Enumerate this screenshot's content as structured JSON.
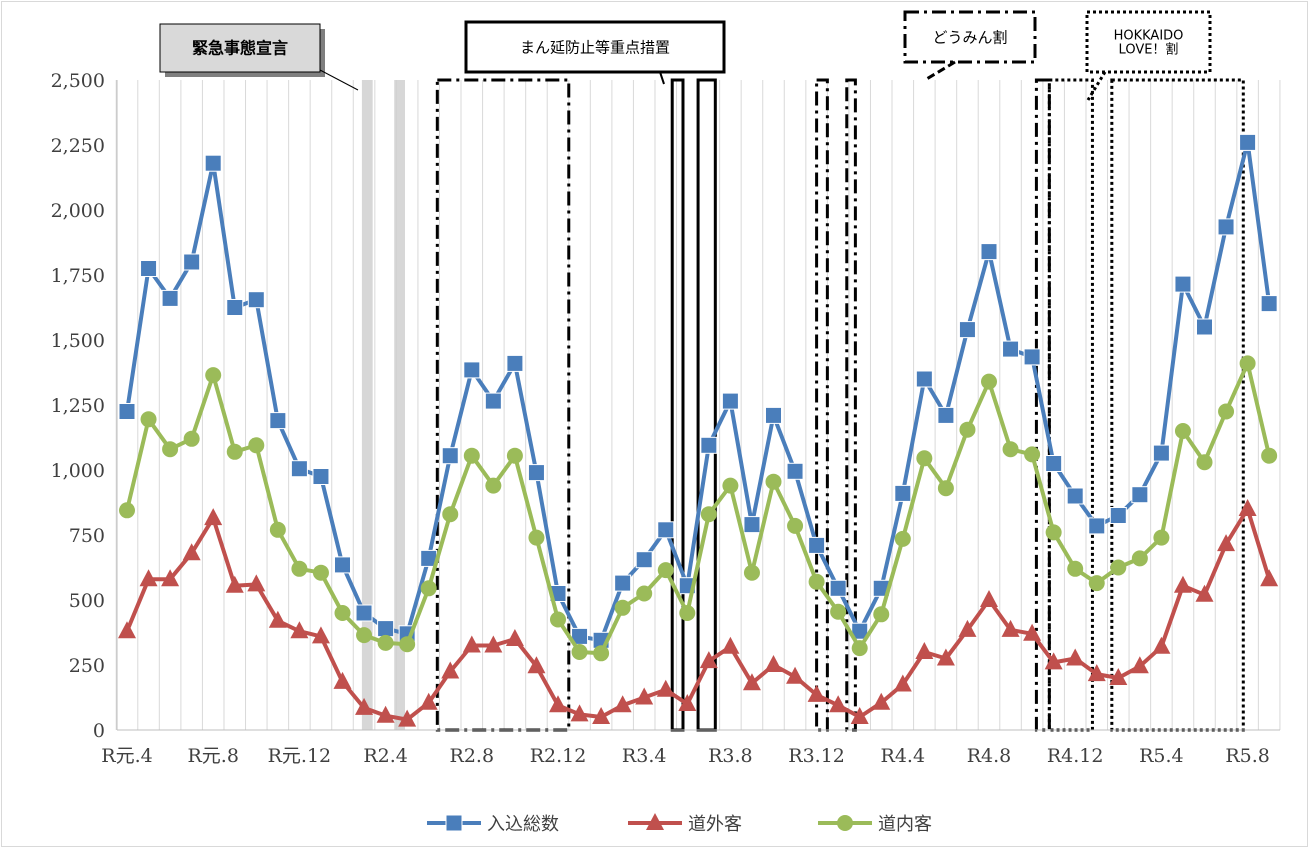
{
  "chart_data": {
    "type": "line",
    "title": "",
    "xlabel": "",
    "ylabel": "",
    "ylim": [
      0,
      2500
    ],
    "yticks": [
      "0",
      "250",
      "500",
      "750",
      "1,000",
      "1,250",
      "1,500",
      "1,750",
      "2,000",
      "2,250",
      "2,500"
    ],
    "x": [
      "R元.4",
      "R元.5",
      "R元.6",
      "R元.7",
      "R元.8",
      "R元.9",
      "R元.10",
      "R元.11",
      "R元.12",
      "R2.1",
      "R2.2",
      "R2.3",
      "R2.4",
      "R2.5",
      "R2.6",
      "R2.7",
      "R2.8",
      "R2.9",
      "R2.10",
      "R2.11",
      "R2.12",
      "R3.1",
      "R3.2",
      "R3.3",
      "R3.4",
      "R3.5",
      "R3.6",
      "R3.7",
      "R3.8",
      "R3.9",
      "R3.10",
      "R3.11",
      "R3.12",
      "R4.1",
      "R4.2",
      "R4.3",
      "R4.4",
      "R4.5",
      "R4.6",
      "R4.7",
      "R4.8",
      "R4.9",
      "R4.10",
      "R4.11",
      "R4.12",
      "R5.1",
      "R5.2",
      "R5.3",
      "R5.4",
      "R5.5",
      "R5.6",
      "R5.7",
      "R5.8",
      "R5.9"
    ],
    "x_tick_labels": [
      "R元.4",
      "R元.8",
      "R元.12",
      "R2.4",
      "R2.8",
      "R2.12",
      "R3.4",
      "R3.8",
      "R3.12",
      "R4.4",
      "R4.8",
      "R4.12",
      "R5.4",
      "R5.8"
    ],
    "series": [
      {
        "name": "入込総数",
        "color": "#4a7ebb",
        "marker": "square",
        "values": [
          1225,
          1775,
          1660,
          1800,
          2180,
          1625,
          1655,
          1190,
          1005,
          975,
          635,
          450,
          390,
          370,
          660,
          1055,
          1385,
          1265,
          1410,
          990,
          525,
          360,
          345,
          565,
          655,
          770,
          555,
          1095,
          1265,
          790,
          1210,
          995,
          710,
          545,
          380,
          545,
          910,
          1350,
          1210,
          1540,
          1840,
          1465,
          1435,
          1025,
          900,
          785,
          825,
          905,
          1065,
          1715,
          1550,
          1935,
          2260,
          1640
        ]
      },
      {
        "name": "道外客",
        "color": "#c0504d",
        "marker": "triangle",
        "values": [
          380,
          580,
          580,
          680,
          815,
          555,
          560,
          420,
          380,
          360,
          185,
          85,
          55,
          40,
          105,
          225,
          325,
          325,
          350,
          245,
          95,
          60,
          50,
          95,
          125,
          155,
          100,
          265,
          320,
          180,
          250,
          205,
          135,
          95,
          50,
          105,
          175,
          300,
          275,
          385,
          500,
          385,
          370,
          260,
          275,
          215,
          200,
          245,
          320,
          555,
          520,
          715,
          850,
          580
        ]
      },
      {
        "name": "道内客",
        "color": "#9bbb59",
        "marker": "circle",
        "values": [
          845,
          1195,
          1080,
          1120,
          1365,
          1070,
          1095,
          770,
          620,
          605,
          450,
          365,
          335,
          330,
          545,
          830,
          1055,
          940,
          1055,
          740,
          425,
          300,
          295,
          470,
          525,
          615,
          450,
          830,
          940,
          605,
          955,
          785,
          570,
          455,
          315,
          445,
          735,
          1045,
          930,
          1155,
          1340,
          1080,
          1060,
          760,
          620,
          565,
          625,
          660,
          740,
          1150,
          1030,
          1225,
          1410,
          1055
        ]
      }
    ],
    "legend": {
      "position": "bottom",
      "entries": [
        "入込総数",
        "道外客",
        "道内客"
      ]
    },
    "grid": {
      "vertical": true,
      "horizontal": false
    },
    "annotations": [
      {
        "label": "緊急事態宣言",
        "style": "gray-band",
        "ranges": [
          [
            10.9,
            11.4
          ],
          [
            12.4,
            12.9
          ]
        ]
      },
      {
        "label": "まん延防止等重点措置",
        "style": "solid-box",
        "ranges": [
          [
            25.3,
            25.8
          ],
          [
            26.5,
            27.3
          ]
        ]
      },
      {
        "label": "どうみん割",
        "style": "dash-dot-box",
        "ranges": [
          [
            14.4,
            20.5
          ],
          [
            32.0,
            32.5
          ],
          [
            33.4,
            33.8
          ],
          [
            42.2,
            42.8
          ]
        ]
      },
      {
        "label": "HOKKAIDO\nLOVE！割",
        "style": "dotted-box",
        "ranges": [
          [
            42.8,
            44.8
          ],
          [
            45.7,
            51.8
          ]
        ]
      }
    ]
  }
}
